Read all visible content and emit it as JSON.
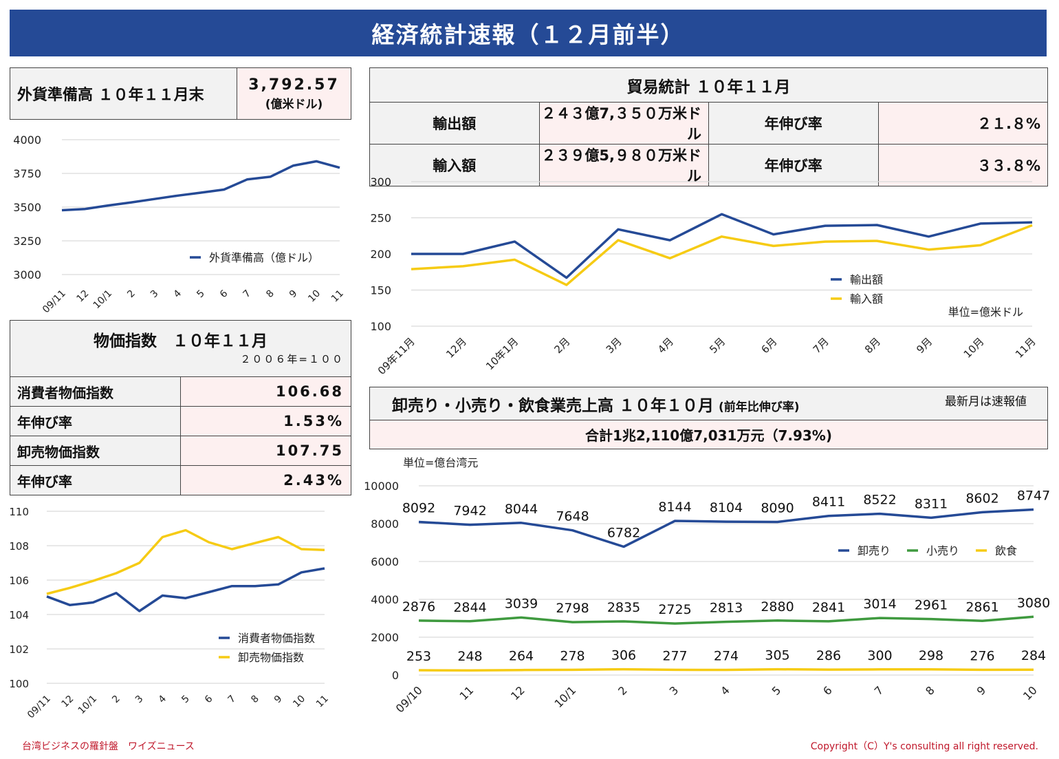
{
  "banner_title": "経済統計速報（１２月前半）",
  "fx_box": {
    "label": "外貨準備高 １０年１１月末",
    "value": "3,792.57",
    "unit": "(億米ドル)"
  },
  "trade_box": {
    "title": "貿易統計 １０年１１月",
    "rows": [
      {
        "label": "輸出額",
        "value": "２４３億7,３５０万米ドル",
        "growth_label": "年伸び率",
        "growth": "２１.８%"
      },
      {
        "label": "輸入額",
        "value": "２３９億5,９８０万米ドル",
        "growth_label": "年伸び率",
        "growth": "３３.８%"
      }
    ]
  },
  "price_box": {
    "title": "物価指数　１０年１１月",
    "base": "２００６年=１００",
    "rows": [
      {
        "label": "消費者物価指数",
        "value": "106.68"
      },
      {
        "label": "年伸び率",
        "value": "1.53%"
      },
      {
        "label": "卸売物価指数",
        "value": "107.75"
      },
      {
        "label": "年伸び率",
        "value": "2.43%"
      }
    ]
  },
  "sales_box": {
    "title": "卸売り・小売り・飲食業売上高 １０年１０月",
    "title_note": "(前年比伸び率)",
    "remark": "最新月は速報値",
    "total": "合計1兆2,110億7,031万元（7.93%)"
  },
  "chart_data": [
    {
      "id": "fx",
      "type": "line",
      "categories": [
        "09/11",
        "12",
        "10/1",
        "2",
        "3",
        "4",
        "5",
        "6",
        "7",
        "8",
        "9",
        "10",
        "11"
      ],
      "series": [
        {
          "name": "外貨準備高（億ドル）",
          "color": "#254a96",
          "values": [
            3477,
            3486,
            3512,
            3535,
            3560,
            3585,
            3607,
            3630,
            3705,
            3725,
            3808,
            3840,
            3792.57
          ]
        }
      ],
      "ylim": [
        3000,
        4000
      ],
      "yticks": [
        3000,
        3250,
        3500,
        3750,
        4000
      ],
      "legend": "bottom-right"
    },
    {
      "id": "trade",
      "type": "line",
      "categories": [
        "09年11月",
        "12月",
        "10年1月",
        "2月",
        "3月",
        "4月",
        "5月",
        "6月",
        "7月",
        "8月",
        "9月",
        "10月",
        "11月"
      ],
      "series": [
        {
          "name": "輸出額",
          "color": "#254a96",
          "values": [
            200,
            200,
            217,
            167,
            234,
            219,
            255,
            227,
            239,
            240,
            224,
            242,
            243.7
          ]
        },
        {
          "name": "輸入額",
          "color": "#f6cb14",
          "values": [
            179,
            183,
            192,
            157,
            219,
            194,
            224,
            211,
            217,
            218,
            206,
            212,
            239.6
          ]
        }
      ],
      "ylim": [
        100,
        300
      ],
      "yticks": [
        100,
        150,
        200,
        250,
        300
      ],
      "unit_note": "単位=億米ドル",
      "legend": "lower-right"
    },
    {
      "id": "price",
      "type": "line",
      "categories": [
        "09/11",
        "12",
        "10/1",
        "2",
        "3",
        "4",
        "5",
        "6",
        "7",
        "8",
        "9",
        "10",
        "11"
      ],
      "series": [
        {
          "name": "消費者物価指数",
          "color": "#254a96",
          "values": [
            105.05,
            104.55,
            104.7,
            105.25,
            104.2,
            105.1,
            104.95,
            105.3,
            105.65,
            105.65,
            105.75,
            106.45,
            106.68
          ]
        },
        {
          "name": "卸売物価指数",
          "color": "#f6cb14",
          "values": [
            105.2,
            105.55,
            105.95,
            106.4,
            107.0,
            108.5,
            108.9,
            108.2,
            107.8,
            108.15,
            108.5,
            107.8,
            107.75
          ]
        }
      ],
      "ylim": [
        100,
        110
      ],
      "yticks": [
        100,
        102,
        104,
        106,
        108,
        110
      ],
      "legend": "bottom-right"
    },
    {
      "id": "sales",
      "type": "line",
      "unit_note": "単位=億台湾元",
      "categories": [
        "09/10",
        "11",
        "12",
        "10/1",
        "2",
        "3",
        "4",
        "5",
        "6",
        "7",
        "8",
        "9",
        "10"
      ],
      "series": [
        {
          "name": "卸売り",
          "color": "#254a96",
          "values": [
            8092,
            7942,
            8044,
            7648,
            6782,
            8144,
            8104,
            8090,
            8411,
            8522,
            8311,
            8602,
            8747
          ]
        },
        {
          "name": "小売り",
          "color": "#3f9a3f",
          "values": [
            2876,
            2844,
            3039,
            2798,
            2835,
            2725,
            2813,
            2880,
            2841,
            3014,
            2961,
            2861,
            3080
          ]
        },
        {
          "name": "飲食",
          "color": "#f6cb14",
          "values": [
            253,
            248,
            264,
            278,
            306,
            277,
            274,
            305,
            286,
            300,
            298,
            276,
            284
          ]
        }
      ],
      "ylim": [
        0,
        10000
      ],
      "yticks": [
        0,
        2000,
        4000,
        6000,
        8000,
        10000
      ],
      "data_labels": true,
      "legend": "right"
    }
  ],
  "footer": {
    "left": "台湾ビジネスの羅針盤　ワイズニュース",
    "right": "Copyright（C）Y's consulting all right reserved."
  }
}
